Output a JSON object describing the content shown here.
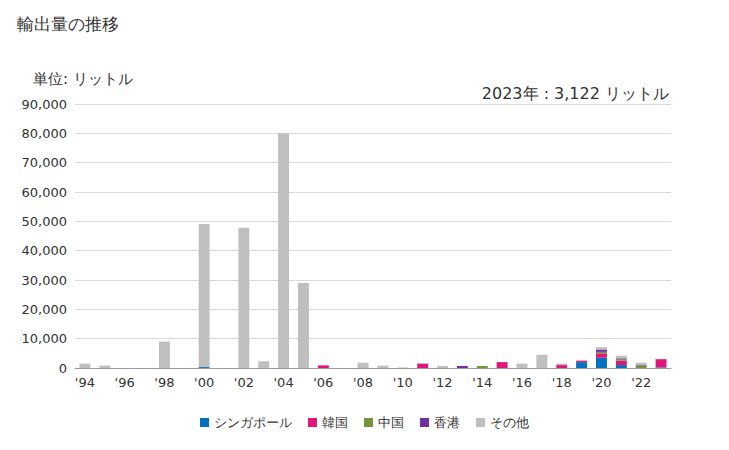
{
  "chart_data": {
    "type": "bar",
    "title": "輸出量の推移",
    "ylabel": "単位: リットル",
    "annotations": [
      "2023年 : 3,122 リットル"
    ],
    "categories": [
      "'94",
      null,
      "'96",
      null,
      "'98",
      null,
      "'00",
      null,
      "'02",
      null,
      "'04",
      null,
      "'06",
      null,
      "'08",
      null,
      "'10",
      null,
      "'12",
      null,
      "'14",
      null,
      "'16",
      null,
      "'18",
      null,
      "'20",
      null,
      "'22",
      null
    ],
    "series": [
      {
        "name": "シンガポール",
        "color": "#0070c0",
        "values": [
          0,
          0,
          0,
          0,
          0,
          0,
          300,
          0,
          0,
          0,
          0,
          0,
          0,
          0,
          0,
          0,
          0,
          0,
          0,
          0,
          0,
          0,
          0,
          0,
          0,
          2000,
          3500,
          1000,
          0,
          200
        ]
      },
      {
        "name": "韓国",
        "color": "#e0177a",
        "values": [
          0,
          0,
          0,
          0,
          0,
          0,
          0,
          0,
          0,
          0,
          0,
          0,
          900,
          0,
          0,
          0,
          0,
          1500,
          0,
          0,
          0,
          2000,
          0,
          0,
          1000,
          500,
          1500,
          1500,
          0,
          2800
        ]
      },
      {
        "name": "中国",
        "color": "#77933c",
        "values": [
          0,
          0,
          0,
          0,
          0,
          0,
          0,
          0,
          0,
          0,
          0,
          0,
          0,
          0,
          0,
          0,
          0,
          0,
          0,
          0,
          700,
          0,
          0,
          0,
          0,
          0,
          500,
          500,
          800,
          122
        ]
      },
      {
        "name": "香港",
        "color": "#7030a0",
        "values": [
          0,
          0,
          0,
          0,
          0,
          0,
          0,
          0,
          0,
          0,
          0,
          0,
          0,
          0,
          0,
          0,
          0,
          0,
          0,
          700,
          0,
          0,
          0,
          0,
          0,
          0,
          800,
          300,
          200,
          0
        ]
      },
      {
        "name": "その他",
        "color": "#bfbfbf",
        "values": [
          1500,
          800,
          0,
          0,
          9000,
          0,
          48800,
          0,
          47800,
          2300,
          80000,
          29000,
          0,
          0,
          1800,
          800,
          200,
          0,
          700,
          0,
          0,
          0,
          1500,
          4500,
          500,
          300,
          800,
          900,
          800,
          0
        ]
      }
    ],
    "stacked": true,
    "ylim": [
      0,
      90000
    ],
    "yticks": [
      0,
      {
        "value": 10000,
        "label": "10,000"
      },
      {
        "value": 20000,
        "label": "20,000"
      },
      {
        "value": 30000,
        "label": "30,000"
      },
      {
        "value": 40000,
        "label": "40,000"
      },
      {
        "value": 50000,
        "label": "50,000"
      },
      {
        "value": 60000,
        "label": "60,000"
      },
      {
        "value": 70000,
        "label": "70,000"
      },
      {
        "value": 80000,
        "label": "80,000"
      },
      {
        "value": 90000,
        "label": "90,000"
      }
    ],
    "grid": true,
    "legend": "bottom"
  }
}
